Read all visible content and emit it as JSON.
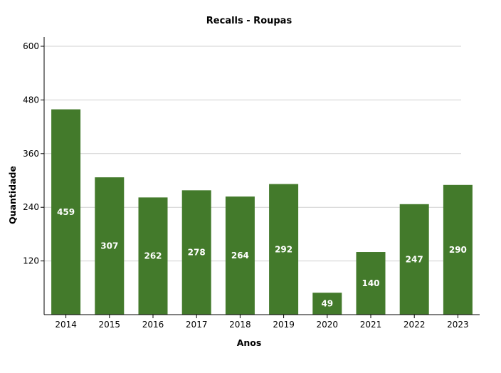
{
  "chart_data": {
    "type": "bar",
    "title": "Recalls - Roupas",
    "xlabel": "Anos",
    "ylabel": "Quantidade",
    "categories": [
      "2014",
      "2015",
      "2016",
      "2017",
      "2018",
      "2019",
      "2020",
      "2021",
      "2022",
      "2023"
    ],
    "values": [
      459,
      307,
      262,
      278,
      264,
      292,
      49,
      140,
      247,
      290
    ],
    "ylim": [
      0,
      600
    ],
    "yticks": [
      120,
      240,
      360,
      480,
      600
    ],
    "grid": true,
    "bar_color": "#437a2b",
    "legend": "none"
  }
}
